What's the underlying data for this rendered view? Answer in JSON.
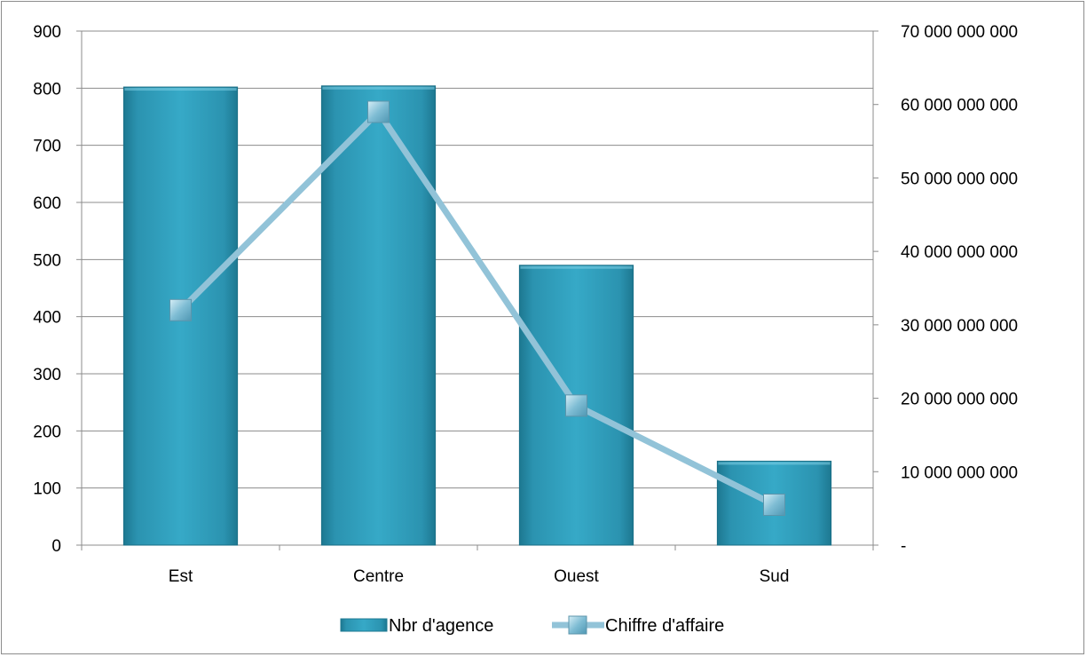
{
  "chart_data": {
    "type": "bar",
    "categories": [
      "Est",
      "Centre",
      "Ouest",
      "Sud"
    ],
    "series": [
      {
        "name": "Nbr d'agence",
        "type": "bar",
        "axis": "left",
        "values": [
          802,
          804,
          490,
          147
        ]
      },
      {
        "name": "Chiffre d'affaire",
        "type": "line",
        "axis": "right",
        "values": [
          32000000000,
          59000000000,
          19000000000,
          5500000000
        ]
      }
    ],
    "y_left": {
      "min": 0,
      "max": 900,
      "step": 100,
      "tick_labels": [
        "0",
        "100",
        "200",
        "300",
        "400",
        "500",
        "600",
        "700",
        "800",
        "900"
      ]
    },
    "y_right": {
      "min": 0,
      "max": 70000000000,
      "step": 10000000000,
      "tick_labels": [
        "-",
        "10 000 000 000",
        "20 000 000 000",
        "30 000 000 000",
        "40 000 000 000",
        "50 000 000 000",
        "60 000 000 000",
        "70 000 000 000"
      ]
    },
    "grid": "horizontal",
    "legend_position": "bottom",
    "colors": {
      "bar": "#31a2c0",
      "bar_dark": "#1d7891",
      "line": "#92c3d8",
      "marker": "#6fb2cb"
    }
  }
}
